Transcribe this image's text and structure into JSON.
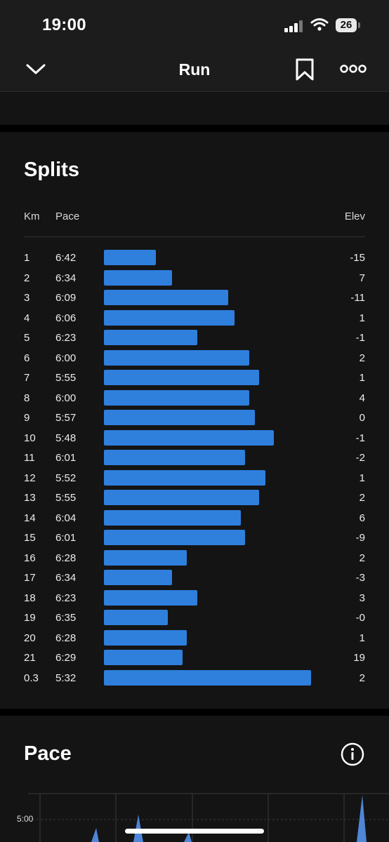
{
  "status_bar": {
    "time": "19:00",
    "battery": "26"
  },
  "nav": {
    "title": "Run",
    "back_icon": "chevron-down-icon",
    "bookmark_icon": "bookmark-icon",
    "more_icon": "more-icon"
  },
  "splits": {
    "title": "Splits",
    "headers": {
      "km": "Km",
      "pace": "Pace",
      "elev": "Elev"
    },
    "bar_color": "#2f7fdd",
    "rows": [
      {
        "km": "1",
        "pace": "6:42",
        "elev": "-15",
        "speed_fraction": 0.25
      },
      {
        "km": "2",
        "pace": "6:34",
        "elev": "7",
        "speed_fraction": 0.33
      },
      {
        "km": "3",
        "pace": "6:09",
        "elev": "-11",
        "speed_fraction": 0.6
      },
      {
        "km": "4",
        "pace": "6:06",
        "elev": "1",
        "speed_fraction": 0.63
      },
      {
        "km": "5",
        "pace": "6:23",
        "elev": "-1",
        "speed_fraction": 0.45
      },
      {
        "km": "6",
        "pace": "6:00",
        "elev": "2",
        "speed_fraction": 0.7
      },
      {
        "km": "7",
        "pace": "5:55",
        "elev": "1",
        "speed_fraction": 0.75
      },
      {
        "km": "8",
        "pace": "6:00",
        "elev": "4",
        "speed_fraction": 0.7
      },
      {
        "km": "9",
        "pace": "5:57",
        "elev": "0",
        "speed_fraction": 0.73
      },
      {
        "km": "10",
        "pace": "5:48",
        "elev": "-1",
        "speed_fraction": 0.82
      },
      {
        "km": "11",
        "pace": "6:01",
        "elev": "-2",
        "speed_fraction": 0.68
      },
      {
        "km": "12",
        "pace": "5:52",
        "elev": "1",
        "speed_fraction": 0.78
      },
      {
        "km": "13",
        "pace": "5:55",
        "elev": "2",
        "speed_fraction": 0.75
      },
      {
        "km": "14",
        "pace": "6:04",
        "elev": "6",
        "speed_fraction": 0.66
      },
      {
        "km": "15",
        "pace": "6:01",
        "elev": "-9",
        "speed_fraction": 0.68
      },
      {
        "km": "16",
        "pace": "6:28",
        "elev": "2",
        "speed_fraction": 0.4
      },
      {
        "km": "17",
        "pace": "6:34",
        "elev": "-3",
        "speed_fraction": 0.33
      },
      {
        "km": "18",
        "pace": "6:23",
        "elev": "3",
        "speed_fraction": 0.45
      },
      {
        "km": "19",
        "pace": "6:35",
        "elev": "-0",
        "speed_fraction": 0.31
      },
      {
        "km": "20",
        "pace": "6:28",
        "elev": "1",
        "speed_fraction": 0.4
      },
      {
        "km": "21",
        "pace": "6:29",
        "elev": "19",
        "speed_fraction": 0.38
      },
      {
        "km": "0.3",
        "pace": "5:32",
        "elev": "2",
        "speed_fraction": 1.0
      }
    ]
  },
  "pace_section": {
    "title": "Pace",
    "info_icon": "info-icon",
    "y_tick": "5:00",
    "line_color": "#6d9de0"
  }
}
